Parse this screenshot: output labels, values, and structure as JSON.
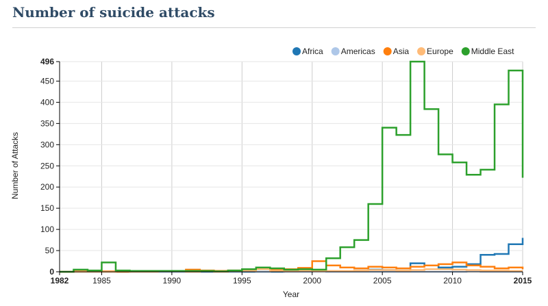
{
  "chart_data": {
    "type": "line",
    "step": true,
    "title": "Number of suicide attacks",
    "xlabel": "Year",
    "ylabel": "Number of Attacks",
    "xlim": [
      1982,
      2015
    ],
    "ylim": [
      0,
      496
    ],
    "x_ticks": [
      1982,
      1985,
      1990,
      1995,
      2000,
      2005,
      2010,
      2015
    ],
    "y_ticks": [
      0,
      50,
      100,
      150,
      200,
      250,
      300,
      350,
      400,
      450,
      496
    ],
    "grid": true,
    "legend": "top-right",
    "x": [
      1982,
      1983,
      1984,
      1985,
      1986,
      1987,
      1988,
      1989,
      1990,
      1991,
      1992,
      1993,
      1994,
      1995,
      1996,
      1997,
      1998,
      1999,
      2000,
      2001,
      2002,
      2003,
      2004,
      2005,
      2006,
      2007,
      2008,
      2009,
      2010,
      2011,
      2012,
      2013,
      2014,
      2015
    ],
    "series": [
      {
        "name": "Africa",
        "color": "#1f77b4",
        "values": [
          0,
          0,
          0,
          0,
          0,
          0,
          0,
          0,
          0,
          0,
          0,
          0,
          0,
          0,
          0,
          0,
          1,
          1,
          2,
          1,
          2,
          3,
          5,
          4,
          3,
          20,
          15,
          10,
          12,
          18,
          40,
          42,
          65,
          80
        ]
      },
      {
        "name": "Americas",
        "color": "#aec7e8",
        "values": [
          0,
          0,
          0,
          0,
          0,
          0,
          0,
          0,
          0,
          0,
          1,
          0,
          0,
          1,
          0,
          1,
          0,
          0,
          1,
          0,
          0,
          0,
          0,
          0,
          0,
          0,
          0,
          0,
          0,
          1,
          0,
          0,
          0,
          0
        ]
      },
      {
        "name": "Asia",
        "color": "#ff7f0e",
        "values": [
          0,
          1,
          2,
          1,
          0,
          1,
          2,
          2,
          2,
          5,
          3,
          2,
          3,
          5,
          6,
          4,
          6,
          9,
          25,
          15,
          10,
          8,
          12,
          10,
          8,
          12,
          15,
          18,
          22,
          15,
          12,
          8,
          10,
          6
        ]
      },
      {
        "name": "Europe",
        "color": "#ffbb78",
        "values": [
          0,
          0,
          0,
          0,
          1,
          0,
          0,
          1,
          1,
          0,
          1,
          0,
          2,
          3,
          6,
          2,
          1,
          3,
          2,
          2,
          2,
          3,
          4,
          4,
          3,
          4,
          6,
          6,
          5,
          4,
          3,
          3,
          2,
          2
        ]
      },
      {
        "name": "Middle East",
        "color": "#2ca02c",
        "values": [
          0,
          5,
          3,
          22,
          3,
          2,
          2,
          2,
          2,
          2,
          2,
          1,
          3,
          6,
          10,
          8,
          5,
          6,
          5,
          32,
          58,
          75,
          160,
          340,
          323,
          496,
          384,
          277,
          258,
          229,
          241,
          395,
          475,
          222
        ]
      }
    ]
  }
}
